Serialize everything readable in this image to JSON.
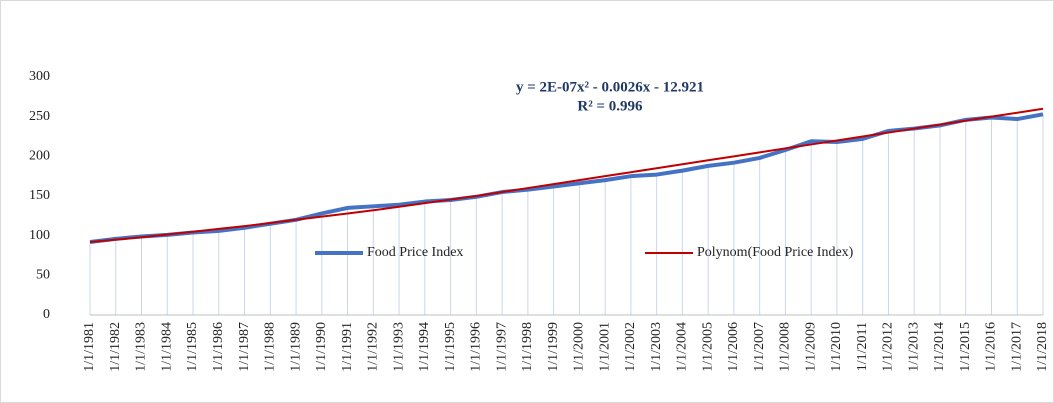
{
  "chart_data": {
    "type": "line",
    "annotations": [
      "y = 2E-07x² - 0.0026x - 12.921",
      "R² = 0.996"
    ],
    "categories": [
      "1/1/1981",
      "1/1/1982",
      "1/1/1983",
      "1/1/1984",
      "1/1/1985",
      "1/1/1986",
      "1/1/1987",
      "1/1/1988",
      "1/1/1989",
      "1/1/1990",
      "1/1/1991",
      "1/1/1992",
      "1/1/1993",
      "1/1/1994",
      "1/1/1995",
      "1/1/1996",
      "1/1/1997",
      "1/1/1998",
      "1/1/1999",
      "1/1/2000",
      "1/1/2001",
      "1/1/2002",
      "1/1/2003",
      "1/1/2004",
      "1/1/2005",
      "1/1/2006",
      "1/1/2007",
      "1/1/2008",
      "1/1/2009",
      "1/1/2010",
      "1/1/2011",
      "1/1/2012",
      "1/1/2013",
      "1/1/2014",
      "1/1/2015",
      "1/1/2016",
      "1/1/2017",
      "1/1/2018"
    ],
    "series": [
      {
        "name": "Food Price Index",
        "color": "#4472c4",
        "drop_lines": true,
        "values": [
          92,
          96,
          99,
          101,
          104,
          106,
          110,
          115,
          120,
          128,
          135,
          137,
          139,
          143,
          145,
          149,
          155,
          158,
          162,
          166,
          170,
          175,
          177,
          182,
          188,
          192,
          198,
          208,
          219,
          218,
          222,
          232,
          235,
          239,
          246,
          249,
          247,
          253
        ]
      },
      {
        "name": "Polynom(Food Price Index)",
        "color": "#c00000",
        "values": [
          92,
          95,
          98,
          101.5,
          105,
          108.5,
          112,
          116,
          120,
          124,
          128,
          132,
          136.5,
          141,
          145.5,
          150,
          155,
          160,
          165,
          170,
          175,
          180,
          185,
          190,
          195,
          200,
          205,
          210,
          215,
          220,
          225,
          230,
          235,
          240,
          245,
          250,
          255,
          260
        ]
      }
    ],
    "ylim": [
      0,
      300
    ],
    "yticks": [
      0,
      50,
      100,
      150,
      200,
      250,
      300
    ]
  }
}
